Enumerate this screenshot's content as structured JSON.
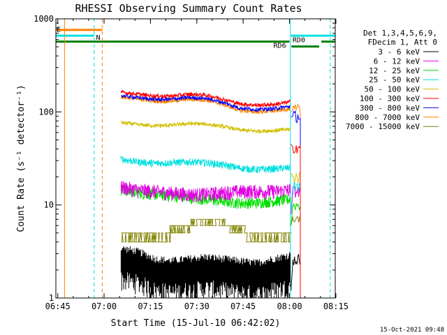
{
  "chart_data": {
    "type": "line",
    "title": "RHESSI Observing Summary Count Rates",
    "xlabel": "Start Time (15-Jul-10 06:42:02)",
    "ylabel": "Count Rate (s⁻¹ detector⁻¹)",
    "yscale": "log",
    "ylim": [
      1,
      1000
    ],
    "xlim_minutes": [
      6.4,
      96.8
    ],
    "x_unit": "minutes after 06:38",
    "x_ticks": [
      {
        "label": "06:45",
        "value": 7
      },
      {
        "label": "07:00",
        "value": 22
      },
      {
        "label": "07:15",
        "value": 37
      },
      {
        "label": "07:30",
        "value": 52
      },
      {
        "label": "07:45",
        "value": 67
      },
      {
        "label": "08:00",
        "value": 82
      },
      {
        "label": "08:15",
        "value": 97
      }
    ],
    "y_ticks": [
      {
        "label": "1",
        "value": 1
      },
      {
        "label": "10",
        "value": 10
      },
      {
        "label": "100",
        "value": 100
      },
      {
        "label": "1000",
        "value": 1000
      }
    ],
    "legend_header": [
      "Det 1,3,4,5,6,9,",
      "FDecim 1, Att 0"
    ],
    "data_start_min": 27.5,
    "data_end_min": 82.2,
    "series": [
      {
        "name": "3 - 6 keV",
        "color": "#000000",
        "values": [
          2.6,
          2.4,
          2.0,
          1.9,
          2.0,
          2.1,
          2.0,
          1.9,
          1.8,
          2.0,
          2.2
        ]
      },
      {
        "name": "6 - 12 keV",
        "color": "#e000e0",
        "values": [
          15.5,
          14.5,
          14,
          13.5,
          13,
          13,
          13.5,
          14,
          14,
          14,
          14.5
        ]
      },
      {
        "name": "12 - 25 keV",
        "color": "#00e000",
        "values": [
          14.5,
          13.5,
          13,
          12.5,
          12,
          11.5,
          11,
          10.5,
          10.5,
          11,
          11.5
        ]
      },
      {
        "name": "25 - 50 keV",
        "color": "#00e0e0",
        "values": [
          31,
          29,
          28,
          28.5,
          29,
          28.5,
          27,
          25,
          24,
          24.5,
          25
        ]
      },
      {
        "name": "50 - 100 keV",
        "color": "#d0c000",
        "values": [
          77,
          73,
          71,
          72,
          75,
          74,
          70,
          64,
          62,
          63,
          65
        ]
      },
      {
        "name": "100 - 300 keV",
        "color": "#ff0000",
        "values": [
          163,
          155,
          148,
          148,
          155,
          152,
          138,
          122,
          118,
          120,
          128
        ]
      },
      {
        "name": "300 - 800 keV",
        "color": "#0000ff",
        "values": [
          150,
          142,
          136,
          137,
          143,
          140,
          127,
          110,
          106,
          108,
          115
        ]
      },
      {
        "name": "800 - 7000 keV",
        "color": "#ff8000",
        "values": [
          145,
          137,
          130,
          131,
          137,
          134,
          121,
          104,
          100,
          102,
          108
        ]
      },
      {
        "name": "7000 - 15000 keV",
        "color": "#808000",
        "values": [
          3.5,
          3.6,
          3.9,
          4.6,
          5.5,
          6.4,
          5.8,
          4.8,
          4.0,
          3.7,
          3.6
        ]
      }
    ],
    "annotations": [
      {
        "text": "E",
        "color": "#ff8000"
      },
      {
        "text": "N",
        "color": "#00e0e0"
      },
      {
        "text": "RD0",
        "color": "#008000"
      },
      {
        "text": "RD6",
        "color": "#008000"
      }
    ],
    "flag_bars": [
      {
        "name": "eclipse-flag",
        "color": "#ff8000",
        "level": 760,
        "spans": [
          [
            6.4,
            21.4
          ]
        ]
      },
      {
        "name": "night-flag",
        "color": "#00e0e0",
        "level": 660,
        "spans": [
          [
            6.4,
            18.8
          ],
          [
            82.5,
            96.8
          ]
        ]
      },
      {
        "name": "saa-flag-rd6",
        "color": "#008000",
        "level": 570,
        "spans": [
          [
            6.4,
            82.0
          ]
        ]
      },
      {
        "name": "saa-flag-rd0",
        "color": "#008000",
        "level": 505,
        "spans": [
          [
            82.6,
            91.6
          ]
        ]
      },
      {
        "name": "saa-flag-tail",
        "color": "#008000",
        "level": 570,
        "spans": [
          [
            92.3,
            96.8
          ]
        ]
      }
    ],
    "event_lines": [
      {
        "name": "orange-line",
        "color": "#ff8000",
        "t": 9.2,
        "style": "solid"
      },
      {
        "name": "cyan-dashed-1",
        "color": "#00e0e0",
        "t": 18.8,
        "style": "dashed"
      },
      {
        "name": "orange-dashed",
        "color": "#ff8000",
        "t": 21.4,
        "style": "dashed"
      },
      {
        "name": "cyan-line",
        "color": "#00e0e0",
        "t": 82.3,
        "style": "solid"
      },
      {
        "name": "cyan-dashed-2",
        "color": "#00e0e0",
        "t": 95.2,
        "style": "dashed"
      }
    ]
  },
  "timestamp": "15-Oct-2021 09:48"
}
